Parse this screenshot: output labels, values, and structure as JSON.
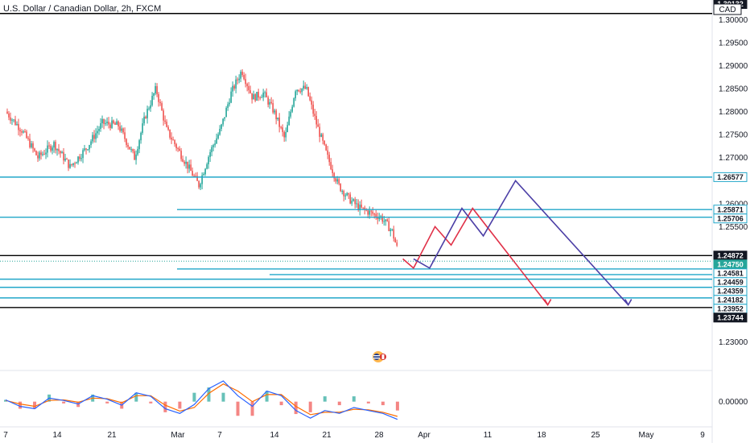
{
  "header": {
    "title": "U.S. Dollar / Canadian Dollar, 2h, FXCM",
    "currency": "CAD",
    "flag_icon": "us-canada-flags-icon"
  },
  "colors": {
    "cyan": "#22a7c9",
    "black": "#000000",
    "up_candle": "#26a69a",
    "down_candle": "#ef5350",
    "projection_red": "#e03148",
    "projection_blue": "#4c3fa6",
    "macd_line": "#2962ff",
    "signal_line": "#ff6d00",
    "price_label_bg": "#26a69a"
  },
  "chart_data": [
    {
      "type": "line",
      "panel": "price",
      "x_tick_labels": [
        "7",
        "14",
        "21",
        "Mar",
        "7",
        "14",
        "21",
        "28",
        "Apr",
        "11",
        "18",
        "25",
        "May",
        "9"
      ],
      "y_tick_labels": [
        "1.30000",
        "1.29500",
        "1.29000",
        "1.28500",
        "1.28000",
        "1.27500",
        "1.27000",
        "1.26000",
        "1.25500",
        "1.23000"
      ],
      "ylim": [
        1.2255,
        1.3025
      ],
      "price_path": [
        {
          "x": 0,
          "y": 1.28
        },
        {
          "x": 3,
          "y": 1.276
        },
        {
          "x": 6,
          "y": 1.27
        },
        {
          "x": 9,
          "y": 1.273
        },
        {
          "x": 12,
          "y": 1.268
        },
        {
          "x": 15,
          "y": 1.272
        },
        {
          "x": 18,
          "y": 1.2775
        },
        {
          "x": 21,
          "y": 1.277
        },
        {
          "x": 24,
          "y": 1.27
        },
        {
          "x": 26,
          "y": 1.279
        },
        {
          "x": 28,
          "y": 1.285
        },
        {
          "x": 30,
          "y": 1.276
        },
        {
          "x": 32,
          "y": 1.272
        },
        {
          "x": 34,
          "y": 1.268
        },
        {
          "x": 36,
          "y": 1.264
        },
        {
          "x": 38,
          "y": 1.271
        },
        {
          "x": 40,
          "y": 1.276
        },
        {
          "x": 42,
          "y": 1.284
        },
        {
          "x": 44,
          "y": 1.289
        },
        {
          "x": 46,
          "y": 1.283
        },
        {
          "x": 48,
          "y": 1.284
        },
        {
          "x": 50,
          "y": 1.28
        },
        {
          "x": 52,
          "y": 1.274
        },
        {
          "x": 54,
          "y": 1.285
        },
        {
          "x": 56,
          "y": 1.285
        },
        {
          "x": 58,
          "y": 1.277
        },
        {
          "x": 60,
          "y": 1.27
        },
        {
          "x": 62,
          "y": 1.264
        },
        {
          "x": 64,
          "y": 1.261
        },
        {
          "x": 66,
          "y": 1.259
        },
        {
          "x": 68,
          "y": 1.258
        },
        {
          "x": 70,
          "y": 1.257
        },
        {
          "x": 72,
          "y": 1.254
        },
        {
          "x": 73,
          "y": 1.25
        }
      ],
      "horizontal_levels": [
        {
          "value": 1.26577,
          "label": "1.26577",
          "style": "cyan"
        },
        {
          "value": 1.25871,
          "label": "1.25871",
          "style": "cyan"
        },
        {
          "value": 1.25706,
          "label": "1.25706",
          "style": "cyan"
        },
        {
          "value": 1.24872,
          "label": "1.24872",
          "style": "black"
        },
        {
          "value": 1.2475,
          "label": "1.24750",
          "style": "last-price"
        },
        {
          "value": 1.24581,
          "label": "1.24581",
          "style": "cyan"
        },
        {
          "value": 1.24459,
          "label": "1.24459",
          "style": "cyan"
        },
        {
          "value": 1.24359,
          "label": "1.24359",
          "style": "cyan"
        },
        {
          "value": 1.24182,
          "label": "1.24182",
          "style": "cyan"
        },
        {
          "value": 1.23952,
          "label": "1.23952",
          "style": "cyan"
        },
        {
          "value": 1.23744,
          "label": "1.23744",
          "style": "black"
        },
        {
          "value": 1.30132,
          "label": "1.30132",
          "style": "black"
        }
      ],
      "projection_red": [
        {
          "x": 74,
          "y": 1.248
        },
        {
          "x": 76,
          "y": 1.246
        },
        {
          "x": 80,
          "y": 1.255
        },
        {
          "x": 83,
          "y": 1.251
        },
        {
          "x": 87,
          "y": 1.259
        },
        {
          "x": 101,
          "y": 1.238
        }
      ],
      "projection_blue": [
        {
          "x": 76,
          "y": 1.248
        },
        {
          "x": 79,
          "y": 1.246
        },
        {
          "x": 85,
          "y": 1.259
        },
        {
          "x": 89,
          "y": 1.253
        },
        {
          "x": 95,
          "y": 1.265
        },
        {
          "x": 116,
          "y": 1.238
        }
      ]
    },
    {
      "type": "line",
      "panel": "macd",
      "y_tick_labels": [
        "0.00000"
      ],
      "ylim": [
        -0.004,
        0.005
      ],
      "macd": [
        0.0003,
        -0.0008,
        -0.0012,
        0.0006,
        0.0002,
        -0.0004,
        0.001,
        0.0004,
        -0.0006,
        0.0015,
        0.0009,
        -0.0012,
        -0.002,
        -0.0005,
        0.0022,
        0.0035,
        0.001,
        -0.0008,
        0.0018,
        0.001,
        -0.0015,
        -0.0028,
        -0.0015,
        -0.002,
        -0.001,
        -0.0015,
        -0.002,
        -0.003
      ],
      "signal": [
        0.0002,
        -0.0004,
        -0.0008,
        0.0002,
        0.0003,
        -0.0001,
        0.0006,
        0.0005,
        -0.0002,
        0.001,
        0.001,
        -0.0006,
        -0.0016,
        -0.001,
        0.0014,
        0.003,
        0.0018,
        0.0,
        0.0012,
        0.0012,
        -0.0008,
        -0.0022,
        -0.0018,
        -0.0018,
        -0.0013,
        -0.0014,
        -0.0018,
        -0.0025
      ]
    }
  ]
}
